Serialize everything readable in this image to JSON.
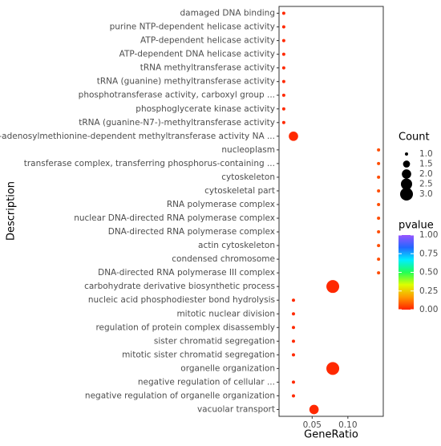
{
  "chart_data": {
    "type": "dotplot",
    "x_label": "GeneRatio",
    "y_label": "Description",
    "categories": [
      "damaged DNA binding",
      "purine NTP-dependent helicase activity",
      "ATP-dependent helicase activity",
      "ATP-dependent DNA helicase activity",
      "tRNA methyltransferase activity",
      "tRNA (guanine) methyltransferase activity",
      "phosphotransferase activity, carboxyl group ...",
      "phosphoglycerate kinase activity",
      "tRNA (guanine-N7-)-methyltransferase activity",
      "S-adenosylmethionine-dependent methyltransferase activity NA ...",
      "nucleoplasm",
      "transferase complex, transferring phosphorus-containing ...",
      "cytoskeleton",
      "cytoskeletal part",
      "RNA polymerase complex",
      "nuclear DNA-directed RNA polymerase complex",
      "DNA-directed RNA polymerase complex",
      "actin cytoskeleton",
      "condensed chromosome",
      "DNA-directed RNA polymerase III complex",
      "carbohydrate derivative biosynthetic process",
      "nucleic acid phosphodiester bond hydrolysis",
      "mitotic nuclear division",
      "regulation of protein complex disassembly",
      "sister chromatid segregation",
      "mitotic sister chromatid segregation",
      "organelle organization",
      "negative regulation of cellular ...",
      "negative regulation of organelle organization",
      "vacuolar transport"
    ],
    "values": [
      0.0102,
      0.0102,
      0.0102,
      0.0102,
      0.0102,
      0.0102,
      0.0102,
      0.0102,
      0.0102,
      0.0238,
      0.143,
      0.143,
      0.143,
      0.143,
      0.143,
      0.143,
      0.143,
      0.143,
      0.143,
      0.143,
      0.0789,
      0.0238,
      0.0238,
      0.0238,
      0.0238,
      0.0238,
      0.0789,
      0.0238,
      0.0238,
      0.0526
    ],
    "sizes": [
      1,
      1,
      1,
      1,
      1,
      1,
      1,
      1,
      1,
      2,
      1,
      1,
      1,
      1,
      1,
      1,
      1,
      1,
      1,
      1,
      3,
      1,
      1,
      1,
      1,
      1,
      3,
      1,
      1,
      2
    ],
    "pvalues": [
      0.01,
      0.01,
      0.01,
      0.01,
      0.01,
      0.01,
      0.01,
      0.01,
      0.01,
      0.01,
      0.06,
      0.06,
      0.06,
      0.06,
      0.06,
      0.06,
      0.06,
      0.06,
      0.06,
      0.06,
      0.01,
      0.01,
      0.01,
      0.01,
      0.01,
      0.01,
      0.01,
      0.01,
      0.01,
      0.01
    ],
    "xlim": [
      0.0036,
      0.1496
    ],
    "xticks": [
      0.05,
      {
        "value": 0.1,
        "label": "0.10"
      }
    ],
    "size_legend": {
      "title": "Count",
      "values": [
        {
          "value": 1,
          "label": "1.0"
        },
        {
          "value": 1.5,
          "label": "1.5"
        },
        {
          "value": 2,
          "label": "2.0"
        },
        {
          "value": 2.5,
          "label": "2.5"
        },
        {
          "value": 3,
          "label": "3.0"
        }
      ]
    },
    "color_legend": {
      "title": "pvalue",
      "lim": [
        0,
        1
      ],
      "ticks": [
        {
          "value": 0,
          "label": "0.00"
        },
        {
          "value": 0.25,
          "label": "0.25"
        },
        {
          "value": 0.5,
          "label": "0.50"
        },
        {
          "value": 0.75,
          "label": "0.75"
        },
        {
          "value": 1,
          "label": "1.00"
        }
      ],
      "colorscale": [
        "#ff2200",
        "#ff9900",
        "#ddff00",
        "#22ff55",
        "#00eeff",
        "#2266ff",
        "#9955ff"
      ]
    }
  }
}
